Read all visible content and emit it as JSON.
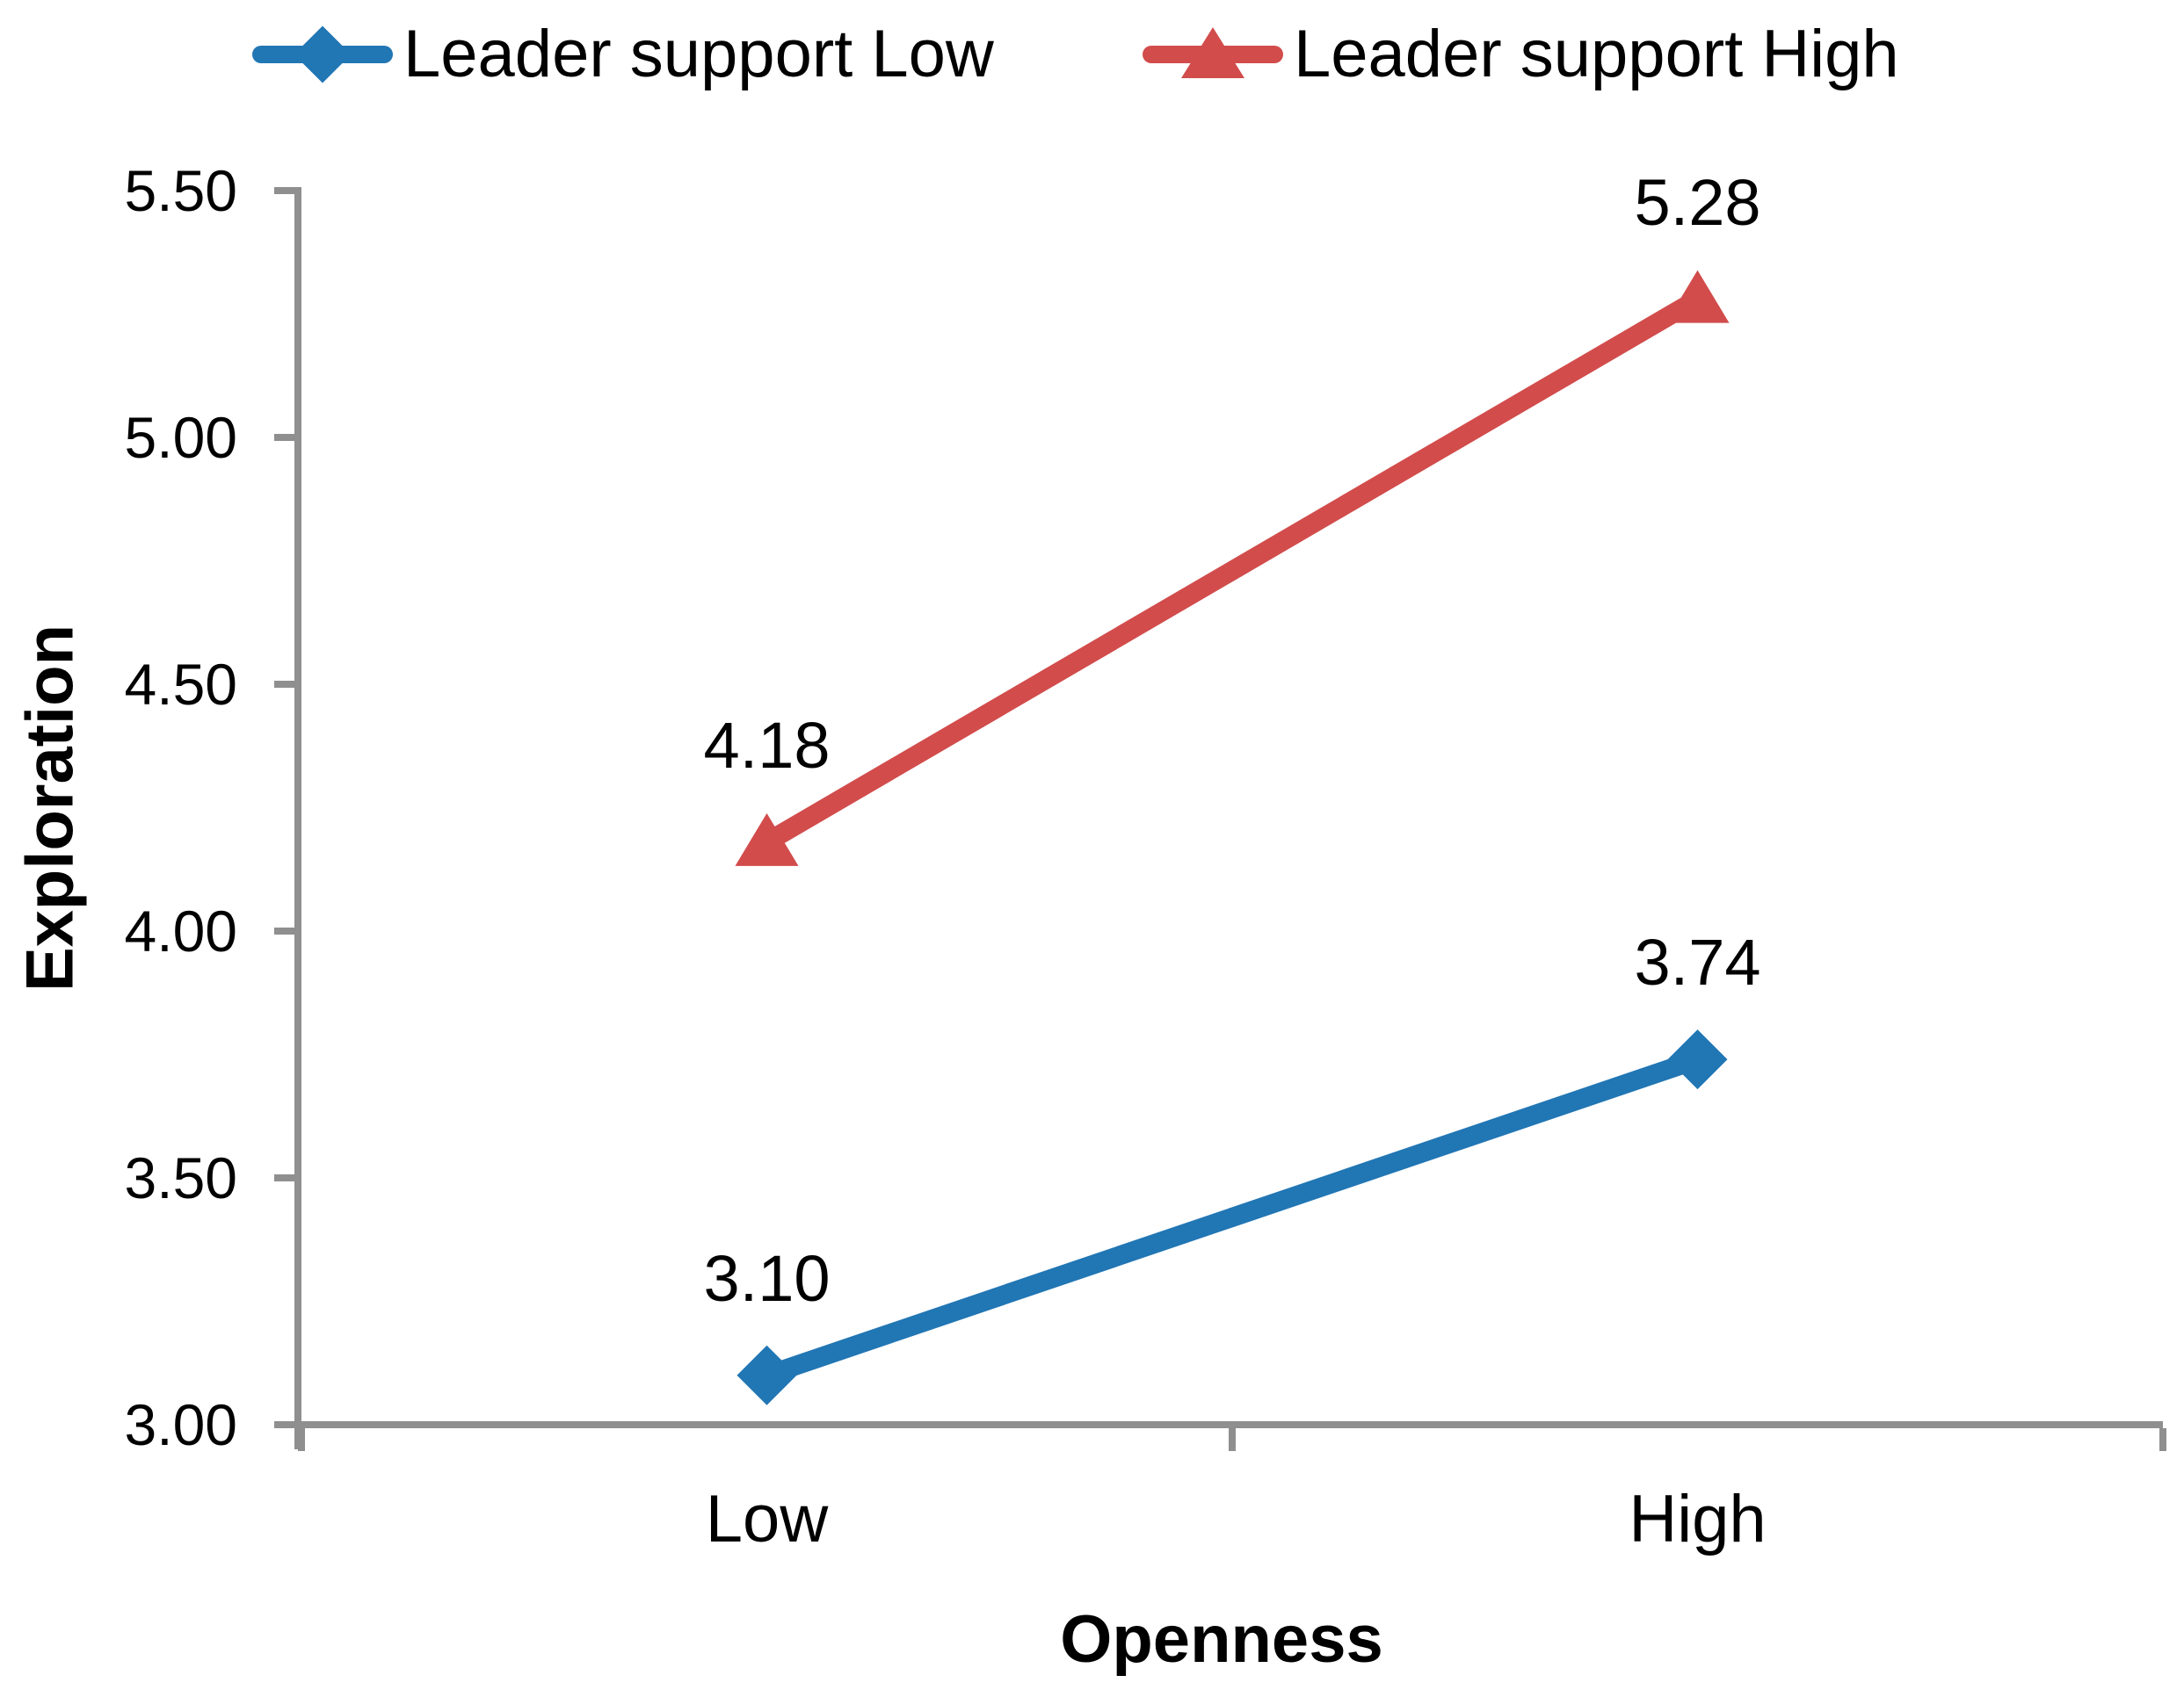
{
  "chart_data": {
    "type": "line",
    "title": "",
    "categories": [
      "Low",
      "High"
    ],
    "series": [
      {
        "name": "Leader support Low",
        "marker": "diamond",
        "color": "#2176B4",
        "values": [
          3.1,
          3.74
        ],
        "labels": [
          "3.10",
          "3.74"
        ]
      },
      {
        "name": "Leader support High",
        "marker": "triangle",
        "color": "#D24C4C",
        "values": [
          4.18,
          5.28
        ],
        "labels": [
          "4.18",
          "5.28"
        ]
      }
    ],
    "xlabel": "Openness",
    "ylabel": "Exploration",
    "ylim": [
      3.0,
      5.5
    ],
    "ytick_step": 0.5,
    "yticklabels": [
      "5.50",
      "5.00",
      "4.50",
      "4.00",
      "3.50",
      "3.00"
    ],
    "grid": false,
    "legend_position": "top",
    "axis_color": "#8F8F8F",
    "text_color": "#000000",
    "background": "#FFFFFF"
  }
}
